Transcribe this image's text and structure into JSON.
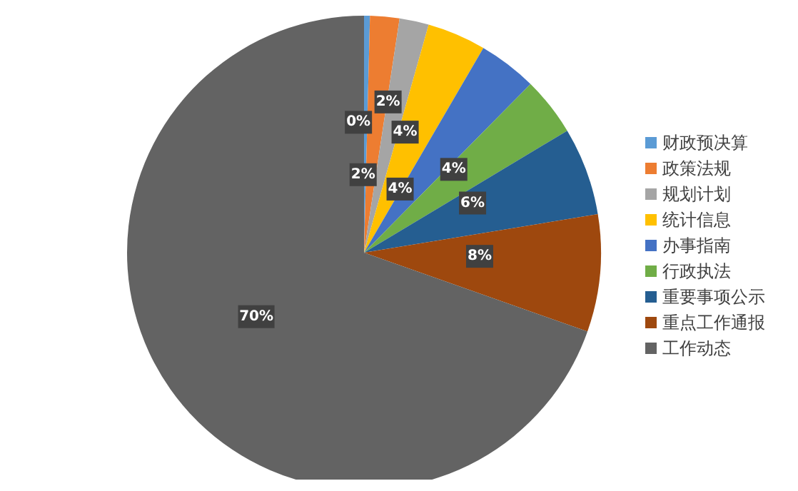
{
  "chart_data": {
    "type": "pie",
    "categories": [
      "财政预决算",
      "政策法规",
      "规划计划",
      "统计信息",
      "办事指南",
      "行政执法",
      "重要事项公示",
      "重点工作通报",
      "工作动态"
    ],
    "values": [
      0.4,
      2,
      2,
      4,
      4,
      4,
      6,
      8,
      69.6
    ],
    "value_labels": [
      "0%",
      "2%",
      "2%",
      "4%",
      "4%",
      "4%",
      "6%",
      "8%",
      "70%"
    ],
    "colors": [
      "#5b9bd5",
      "#ed7d31",
      "#a5a5a5",
      "#ffc000",
      "#4472c4",
      "#70ad47",
      "#255e91",
      "#9e480e",
      "#636363"
    ],
    "legend": "right"
  }
}
